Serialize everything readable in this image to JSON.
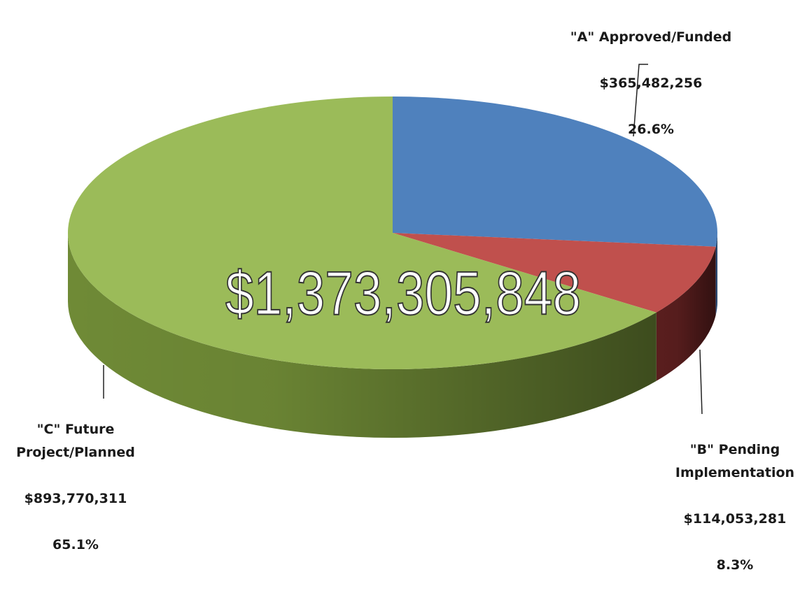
{
  "chart_data": {
    "type": "pie",
    "center_label": "$1,373,305,848",
    "categories": [
      "\"A\" Approved/Funded",
      "\"B\" Pending\nImplementation",
      "\"C\" Future\nProject/Planned"
    ],
    "values": [
      365482256,
      114053281,
      893770311
    ],
    "value_labels": [
      "$365,482,256",
      "$114,053,281",
      "$893,770,311"
    ],
    "percents": [
      26.6,
      8.3,
      65.1
    ],
    "percent_labels": [
      "26.6%",
      "8.3%",
      "65.1%"
    ],
    "colors": [
      "#4f81bd",
      "#c0504d",
      "#9bbb59"
    ],
    "side_colors": [
      "#2f5688",
      "#5a1e1e",
      "#6f8a36"
    ]
  }
}
